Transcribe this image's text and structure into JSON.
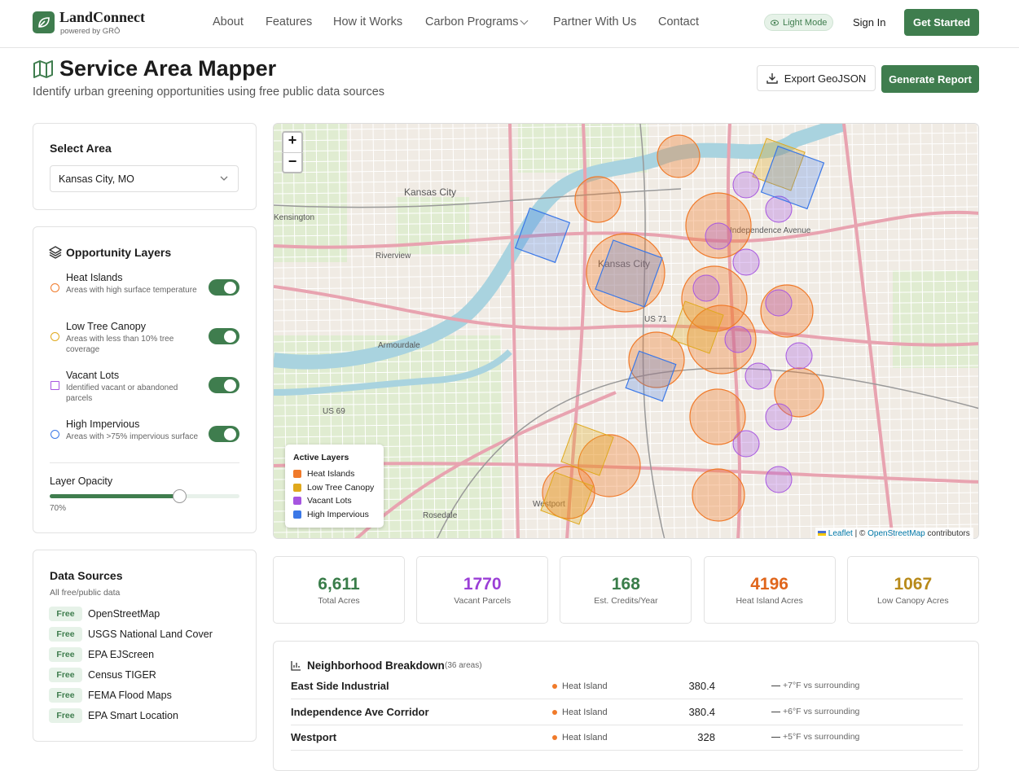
{
  "nav": {
    "brand": "LandConnect",
    "tagline": "powered by GRŌ",
    "links": [
      "About",
      "Features",
      "How it Works",
      "Carbon Programs",
      "Partner With Us",
      "Contact"
    ],
    "mode": "Light Mode",
    "sign_in": "Sign In",
    "cta": "Get Started"
  },
  "header": {
    "title": "Service Area Mapper",
    "subtitle": "Identify urban greening opportunities using free public data sources",
    "export": "Export GeoJSON",
    "report": "Generate Report"
  },
  "area": {
    "label": "Select Area",
    "value": "Kansas City, MO"
  },
  "layers": {
    "title": "Opportunity Layers",
    "items": [
      {
        "name": "Heat Islands",
        "desc": "Areas with high surface temperature",
        "on": true,
        "color": "#f07a2a"
      },
      {
        "name": "Low Tree Canopy",
        "desc": "Areas with less than 10% tree coverage",
        "on": true,
        "color": "#e0a91c"
      },
      {
        "name": "Vacant Lots",
        "desc": "Identified vacant or abandoned parcels",
        "on": true,
        "color": "#a655e0"
      },
      {
        "name": "High Impervious",
        "desc": "Areas with >75% impervious surface",
        "on": true,
        "color": "#3b78e7"
      }
    ],
    "opacity_label": "Layer Opacity",
    "opacity": {
      "value": 70,
      "label": "70%"
    }
  },
  "sources": {
    "title": "Data Sources",
    "subtitle": "All free/public data",
    "items": [
      {
        "badge": "Free",
        "name": "OpenStreetMap"
      },
      {
        "badge": "Free",
        "name": "USGS National Land Cover"
      },
      {
        "badge": "Free",
        "name": "EPA EJScreen"
      },
      {
        "badge": "Free",
        "name": "Census TIGER"
      },
      {
        "badge": "Free",
        "name": "FEMA Flood Maps"
      },
      {
        "badge": "Free",
        "name": "EPA Smart Location"
      }
    ]
  },
  "map": {
    "zoom_in": "+",
    "zoom_out": "−",
    "legend_title": "Active Layers",
    "legend": [
      {
        "name": "Heat Islands",
        "color": "#f07a2a"
      },
      {
        "name": "Low Tree Canopy",
        "color": "#e0a91c"
      },
      {
        "name": "Vacant Lots",
        "color": "#a655e0"
      },
      {
        "name": "High Impervious",
        "color": "#3b78e7"
      }
    ],
    "attribution": {
      "leaflet": "Leaflet",
      "sep": "| ©",
      "osm": "OpenStreetMap",
      "rest": "contributors"
    },
    "labels": [
      "Kansas City",
      "Kensington",
      "Riverview",
      "Armourdale",
      "Kansas City",
      "Westport",
      "Independence Avenue",
      "US 71",
      "US 69",
      "Rosedale"
    ]
  },
  "stats": [
    {
      "value": "6,611",
      "label": "Total Acres",
      "color": "#3a7d4a"
    },
    {
      "value": 1770,
      "label": "Vacant Parcels",
      "color": "#9b3fd6"
    },
    {
      "value": 168,
      "label": "Est. Credits/Year",
      "color": "#3a7d4a"
    },
    {
      "value": 4196,
      "label": "Heat Island Acres",
      "color": "#e0661c"
    },
    {
      "value": 1067,
      "label": "Low Canopy Acres",
      "color": "#b88a1a"
    }
  ],
  "breakdown": {
    "title": "Neighborhood Breakdown",
    "count": "(36 areas)",
    "rows": [
      {
        "name": "East Side Industrial",
        "type": "Heat Island",
        "acres": 380.4,
        "note": "+7°F vs surrounding"
      },
      {
        "name": "Independence Ave Corridor",
        "type": "Heat Island",
        "acres": 380.4,
        "note": "+6°F vs surrounding"
      },
      {
        "name": "Westport",
        "type": "Heat Island",
        "acres": 328,
        "note": "+5°F vs surrounding"
      }
    ]
  }
}
